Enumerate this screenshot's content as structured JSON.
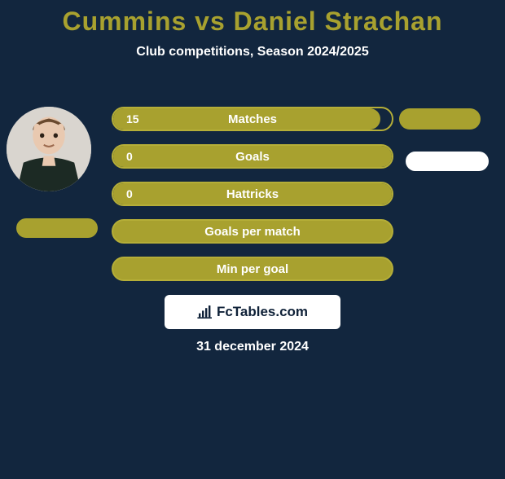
{
  "title": {
    "text": "Cummins vs Daniel Strachan",
    "color": "#a8a12f",
    "fontsize": 32
  },
  "subtitle": {
    "text": "Club competitions, Season 2024/2025",
    "fontsize": 16
  },
  "colors": {
    "background": "#12263e",
    "accent": "#a8a12f",
    "bar_border": "#b5ae38",
    "white": "#ffffff",
    "text": "#ffffff"
  },
  "rows": [
    {
      "label": "Matches",
      "left_value": "15",
      "fill_pct": 96,
      "filled": true
    },
    {
      "label": "Goals",
      "left_value": "0",
      "fill_pct": 100,
      "filled": true
    },
    {
      "label": "Hattricks",
      "left_value": "0",
      "fill_pct": 100,
      "filled": true
    },
    {
      "label": "Goals per match",
      "left_value": "",
      "fill_pct": 0,
      "filled": false
    },
    {
      "label": "Min per goal",
      "left_value": "",
      "fill_pct": 0,
      "filled": false
    }
  ],
  "row_style": {
    "height": 30,
    "gap": 16,
    "label_fontsize": 15,
    "value_fontsize": 14,
    "border_radius": 999
  },
  "pills": {
    "left": {
      "color": "#a8a12f"
    },
    "right1": {
      "color": "#a8a12f"
    },
    "right2": {
      "color": "#ffffff"
    }
  },
  "attribution": {
    "text": "FcTables.com",
    "fontsize": 17
  },
  "date": {
    "text": "31 december 2024",
    "fontsize": 16
  }
}
